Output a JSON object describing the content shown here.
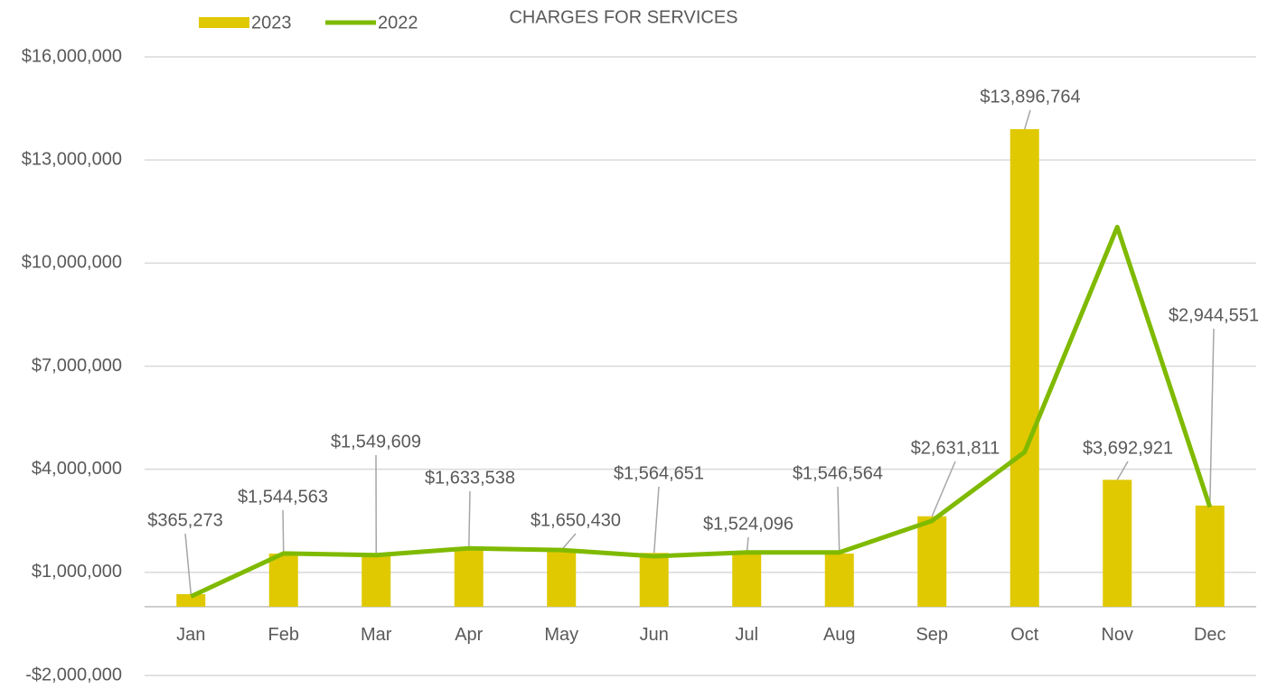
{
  "chart_data": {
    "type": "bar_line",
    "title": "CHARGES FOR SERVICES",
    "categories": [
      "Jan",
      "Feb",
      "Mar",
      "Apr",
      "May",
      "Jun",
      "Jul",
      "Aug",
      "Sep",
      "Oct",
      "Nov",
      "Dec"
    ],
    "series": [
      {
        "name": "2023",
        "type": "bar",
        "color": "#e0c900",
        "values": [
          365273,
          1544563,
          1549609,
          1633538,
          1650430,
          1564651,
          1524096,
          1546564,
          2631811,
          13896764,
          3692921,
          2944551
        ],
        "value_labels": [
          "$365,273",
          "$1,544,563",
          "$1,549,609",
          "$1,633,538",
          "$1,650,430",
          "$1,564,651",
          "$1,524,096",
          "$1,546,564",
          "$2,631,811",
          "$13,896,764",
          "$3,692,921",
          "$2,944,551"
        ]
      },
      {
        "name": "2022",
        "type": "line",
        "color": "#7fba00",
        "values": [
          300000,
          1550000,
          1500000,
          1700000,
          1650000,
          1470000,
          1580000,
          1580000,
          2500000,
          4500000,
          11050000,
          2900000
        ]
      }
    ],
    "ylim": [
      -2000000,
      16000000
    ],
    "yticks": [
      {
        "value": -2000000,
        "label": "-$2,000,000"
      },
      {
        "value": 1000000,
        "label": "$1,000,000"
      },
      {
        "value": 4000000,
        "label": "$4,000,000"
      },
      {
        "value": 7000000,
        "label": "$7,000,000"
      },
      {
        "value": 10000000,
        "label": "$10,000,000"
      },
      {
        "value": 13000000,
        "label": "$13,000,000"
      },
      {
        "value": 16000000,
        "label": "$16,000,000"
      }
    ],
    "grid": true,
    "legend": "top-left"
  }
}
